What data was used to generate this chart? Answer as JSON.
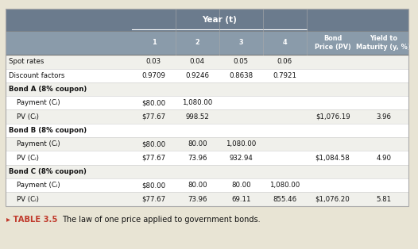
{
  "title_caption": "TABLE 3.5",
  "caption_text": "The law of one price applied to government bonds.",
  "header_year": "Year (t)",
  "col_headers": [
    "1",
    "2",
    "3",
    "4",
    "Bond\nPrice (PV)",
    "Yield to\nMaturity (y, %)"
  ],
  "rows": [
    {
      "label": "Spot rates",
      "indent": 0,
      "bold": false,
      "values": [
        "0.03",
        "0.04",
        "0.05",
        "0.06",
        "",
        ""
      ]
    },
    {
      "label": "Discount factors",
      "indent": 0,
      "bold": false,
      "values": [
        "0.9709",
        "0.9246",
        "0.8638",
        "0.7921",
        "",
        ""
      ]
    },
    {
      "label": "Bond A (8% coupon)",
      "indent": 0,
      "bold": true,
      "values": [
        "",
        "",
        "",
        "",
        "",
        ""
      ]
    },
    {
      "label": "Payment (Cᵢ)",
      "indent": 1,
      "bold": false,
      "values": [
        "$80.00",
        "1,080.00",
        "",
        "",
        "",
        ""
      ]
    },
    {
      "label": "PV (Cᵢ)",
      "indent": 1,
      "bold": false,
      "values": [
        "$77.67",
        "998.52",
        "",
        "",
        "$1,076.19",
        "3.96"
      ]
    },
    {
      "label": "Bond B (8% coupon)",
      "indent": 0,
      "bold": true,
      "values": [
        "",
        "",
        "",
        "",
        "",
        ""
      ]
    },
    {
      "label": "Payment (Cᵢ)",
      "indent": 1,
      "bold": false,
      "values": [
        "$80.00",
        "80.00",
        "1,080.00",
        "",
        "",
        ""
      ]
    },
    {
      "label": "PV (Cᵢ)",
      "indent": 1,
      "bold": false,
      "values": [
        "$77.67",
        "73.96",
        "932.94",
        "",
        "$1,084.58",
        "4.90"
      ]
    },
    {
      "label": "Bond C (8% coupon)",
      "indent": 0,
      "bold": true,
      "values": [
        "",
        "",
        "",
        "",
        "",
        ""
      ]
    },
    {
      "label": "Payment (Cᵢ)",
      "indent": 1,
      "bold": false,
      "values": [
        "$80.00",
        "80.00",
        "80.00",
        "1,080.00",
        "",
        ""
      ]
    },
    {
      "label": "PV (Cᵢ)",
      "indent": 1,
      "bold": false,
      "values": [
        "$77.67",
        "73.96",
        "69.11",
        "855.46",
        "$1,076.20",
        "5.81"
      ]
    }
  ],
  "header_bg": "#6b7b8d",
  "subheader_bg": "#8a9baa",
  "row_bg_even": "#f0f0eb",
  "row_bg_odd": "#ffffff",
  "outer_bg": "#e8e4d4",
  "caption_color": "#c0392b",
  "text_color_body": "#111111"
}
